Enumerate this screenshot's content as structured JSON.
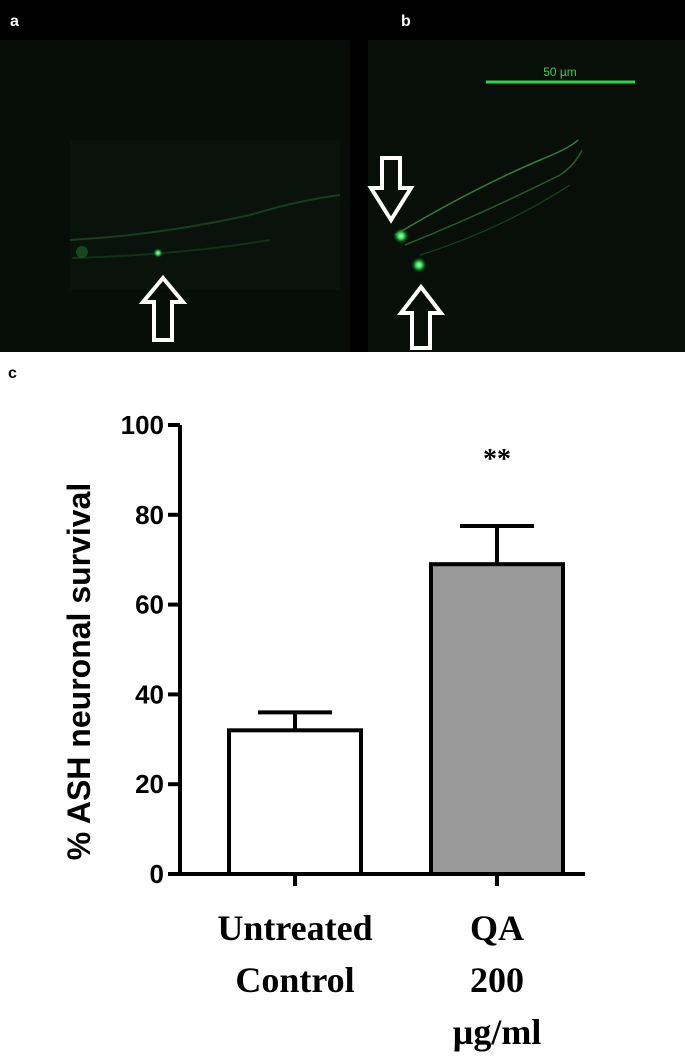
{
  "micrographs": {
    "panel_a_label": "a",
    "panel_b_label": "b",
    "scale_bar_label": "50 µm",
    "fluorescence_color": "#2bd64a",
    "arrow_icon": "hollow-arrow-icon"
  },
  "panel_c_label": "c",
  "chart_data": {
    "type": "bar",
    "categories": [
      "Untreated Control",
      "QA 200 µg/ml"
    ],
    "category_label_lines": [
      [
        "Untreated",
        "Control"
      ],
      [
        "QA",
        "200",
        "µg/ml"
      ]
    ],
    "values": [
      32,
      69
    ],
    "error": [
      4,
      8.5
    ],
    "bar_colors": [
      "#ffffff",
      "#999999"
    ],
    "significance": [
      "",
      "**"
    ],
    "ylabel": "% ASH neuronal survival",
    "xlabel": "",
    "ylim": [
      0,
      100
    ],
    "yticks": [
      "0",
      "20",
      "40",
      "60",
      "80",
      "100"
    ],
    "grid": false,
    "title": ""
  }
}
